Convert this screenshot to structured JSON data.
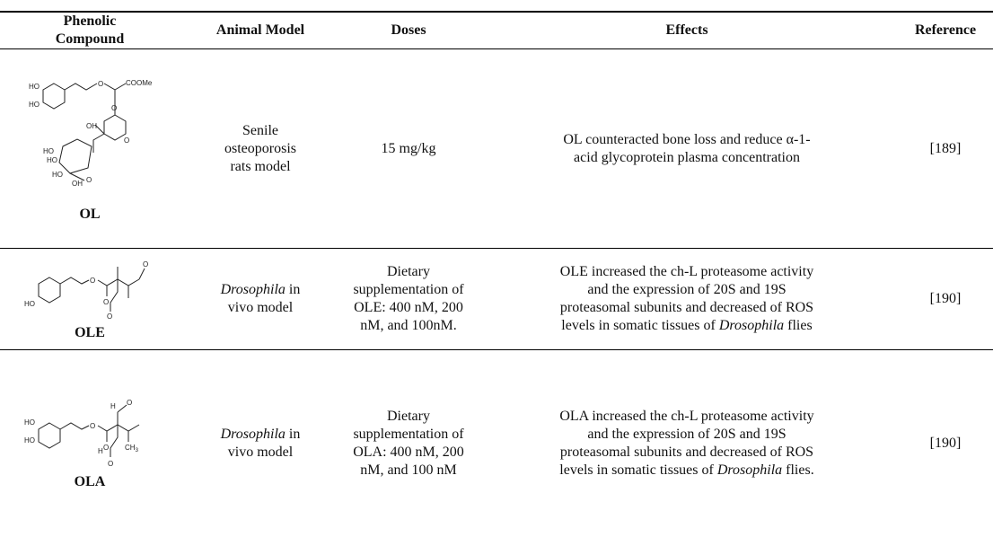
{
  "header": {
    "columns": [
      "Phenolic Compound",
      "Animal Model",
      "Doses",
      "Effects",
      "Reference"
    ]
  },
  "rows": [
    {
      "compound": "OL",
      "structure_labels": [
        "HO",
        "HO",
        "O",
        "O",
        "COOMe",
        "OH",
        "O",
        "HO",
        "HO",
        "HO",
        "OH",
        "O"
      ],
      "animal_model": [
        "Senile osteoporosis rats model"
      ],
      "doses": [
        "15 mg/kg"
      ],
      "effects": [
        "OL counteracted bone loss and reduce α-1-acid glycoprotein plasma concentration"
      ],
      "reference": "[189]"
    },
    {
      "compound": "OLE",
      "structure_labels": [
        "HO",
        "O",
        "O",
        "O",
        "O"
      ],
      "animal_model": [
        "Drosophila",
        " in vivo model"
      ],
      "doses": [
        "Dietary supplementation of OLE: 400 nM, 200 nM, and 100nM."
      ],
      "effects": [
        "OLE increased the ch-L proteasome activity and the expression of 20S and 19S proteasomal subunits and decreased of ROS levels in somatic tissues of ",
        "Drosophila",
        " flies"
      ],
      "reference": "[190]"
    },
    {
      "compound": "OLA",
      "structure_labels": [
        "HO",
        "HO",
        "O",
        "O",
        "H",
        "O",
        "CH",
        "3",
        "H",
        "O"
      ],
      "animal_model": [
        "Drosophila",
        " in vivo model"
      ],
      "doses": [
        "Dietary supplementation of OLA: 400 nM, 200 nM, and 100 nM"
      ],
      "effects": [
        "OLA increased the ch-L proteasome activity and the expression of 20S and 19S proteasomal subunits and decreased of ROS levels in somatic tissues of ",
        "Drosophila",
        " flies."
      ],
      "reference": "[190]"
    }
  ]
}
